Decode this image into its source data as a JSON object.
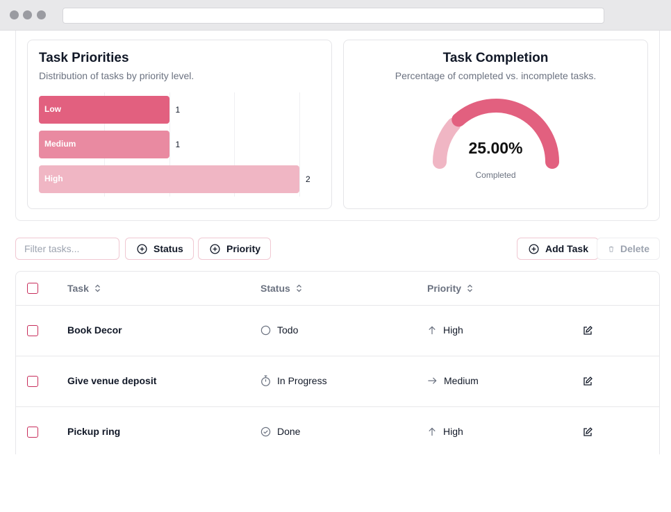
{
  "charts": {
    "priorities": {
      "title": "Task Priorities",
      "subtitle": "Distribution of tasks by priority level."
    },
    "completion": {
      "title": "Task Completion",
      "subtitle": "Percentage of completed vs. incomplete tasks.",
      "percent_label": "25.00%",
      "caption": "Completed"
    }
  },
  "chart_data": [
    {
      "type": "bar",
      "orientation": "horizontal",
      "categories": [
        "Low",
        "Medium",
        "High"
      ],
      "values": [
        1,
        1,
        2
      ],
      "xlim": [
        0,
        2
      ],
      "colors": [
        "#e2607f",
        "#e98aa1",
        "#f0b6c4"
      ]
    },
    {
      "type": "pie",
      "style": "half-donut gauge",
      "categories": [
        "Completed",
        "Incomplete"
      ],
      "values": [
        25,
        75
      ],
      "colors": [
        "#f0b6c4",
        "#e2607f"
      ]
    }
  ],
  "toolbar": {
    "filter_placeholder": "Filter tasks...",
    "status_label": "Status",
    "priority_label": "Priority",
    "add_label": "Add Task",
    "delete_label": "Delete"
  },
  "table": {
    "headers": {
      "task": "Task",
      "status": "Status",
      "priority": "Priority"
    },
    "rows": [
      {
        "title": "Book Decor",
        "status": "Todo",
        "status_icon": "circle-icon",
        "priority": "High",
        "priority_icon": "arrow-up-icon"
      },
      {
        "title": "Give venue deposit",
        "status": "In Progress",
        "status_icon": "timer-icon",
        "priority": "Medium",
        "priority_icon": "arrow-right-icon"
      },
      {
        "title": "Pickup ring",
        "status": "Done",
        "status_icon": "check-circle-icon",
        "priority": "High",
        "priority_icon": "arrow-up-icon"
      }
    ]
  },
  "colors": {
    "accent": "#e2607f",
    "accent_light": "#f0b6c4",
    "border": "#f0c8d2"
  }
}
